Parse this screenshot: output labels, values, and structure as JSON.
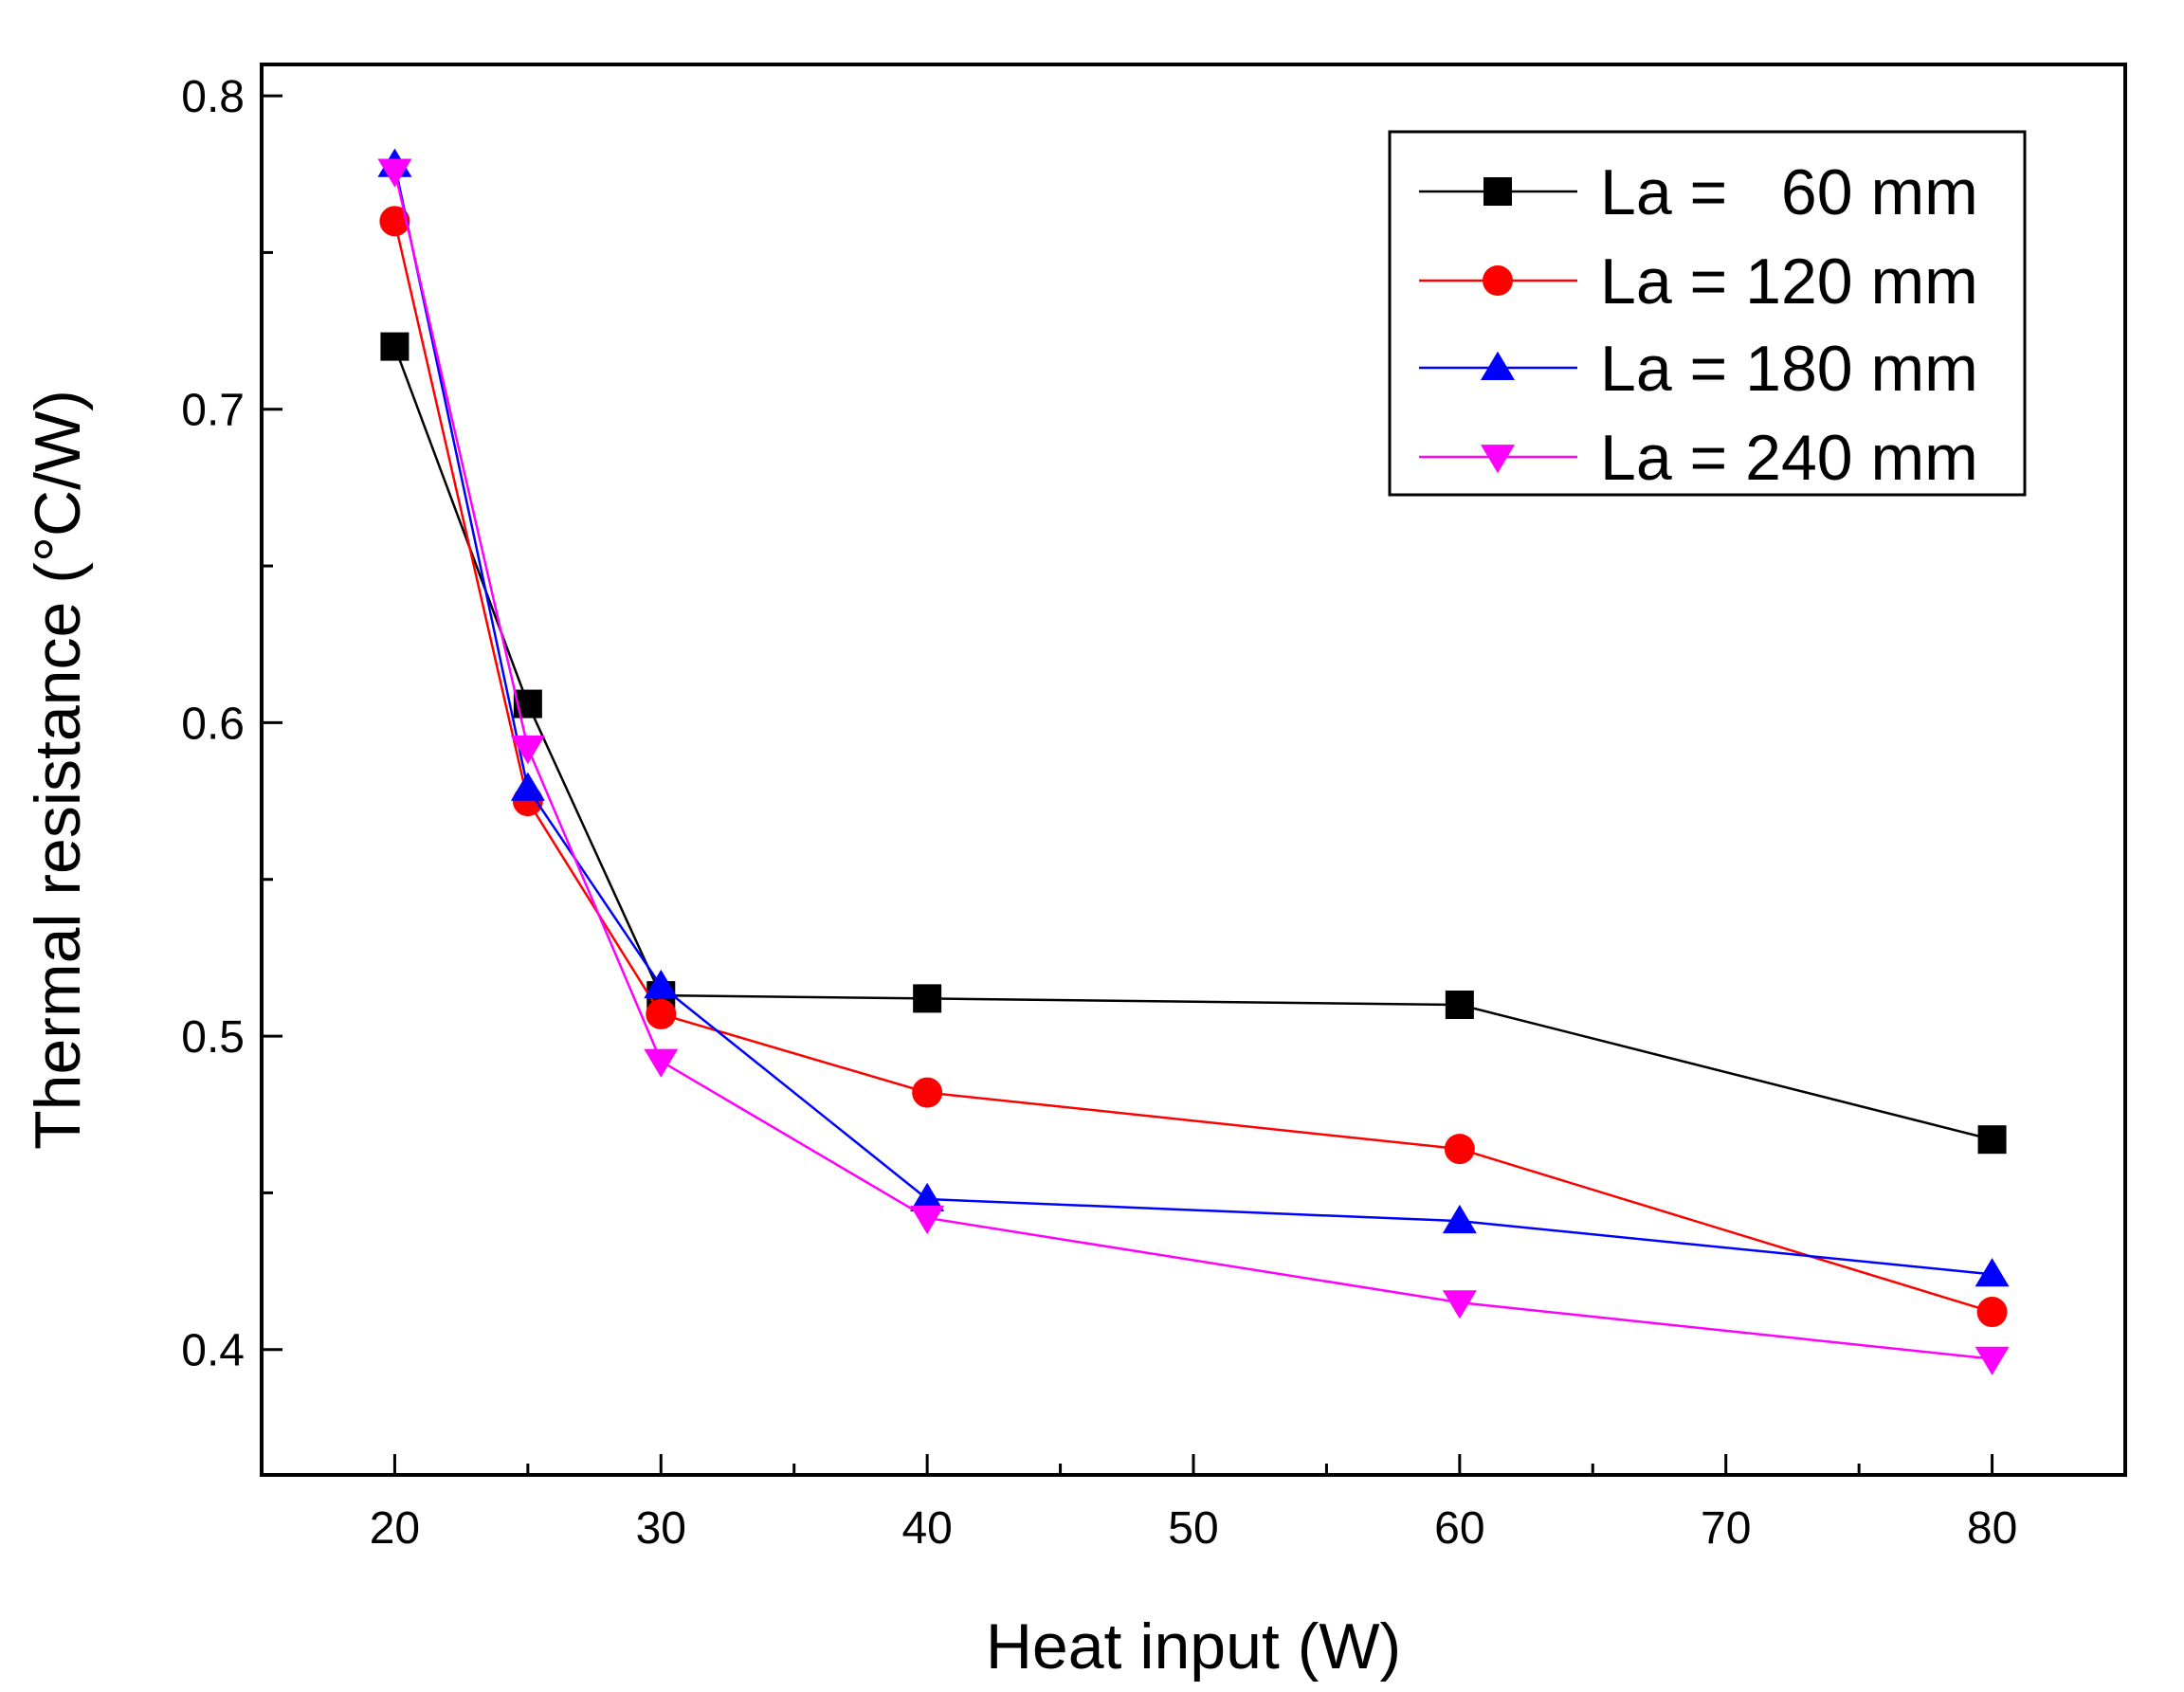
{
  "chart_data": {
    "type": "line",
    "title": "",
    "xlabel": "Heat input (W)",
    "ylabel": "Thermal resistance (°C/W)",
    "xlim": [
      15,
      85
    ],
    "ylim": [
      0.36,
      0.81
    ],
    "x_ticks": [
      20,
      30,
      40,
      50,
      60,
      70,
      80
    ],
    "x_tick_labels": [
      "20",
      "30",
      "40",
      "50",
      "60",
      "70",
      "80"
    ],
    "y_ticks": [
      0.4,
      0.5,
      0.6,
      0.7,
      0.8
    ],
    "y_tick_labels": [
      "0.4",
      "0.5",
      "0.6",
      "0.7",
      "0.8"
    ],
    "grid": false,
    "legend_position": "top-right",
    "x": [
      20,
      25,
      30,
      40,
      60,
      80
    ],
    "series": [
      {
        "name": "La =   60 mm",
        "marker": "square",
        "color": "#000000",
        "values": [
          0.72,
          0.606,
          0.513,
          0.512,
          0.51,
          0.467
        ]
      },
      {
        "name": "La = 120 mm",
        "marker": "circle",
        "color": "#ff0000",
        "values": [
          0.76,
          0.575,
          0.507,
          0.482,
          0.464,
          0.412
        ]
      },
      {
        "name": "La = 180 mm",
        "marker": "triangle-up",
        "color": "#0000ff",
        "values": [
          0.778,
          0.579,
          0.516,
          0.448,
          0.441,
          0.424
        ]
      },
      {
        "name": "La = 240 mm",
        "marker": "triangle-down",
        "color": "#ff00ff",
        "values": [
          0.776,
          0.592,
          0.492,
          0.442,
          0.415,
          0.397
        ]
      }
    ]
  }
}
